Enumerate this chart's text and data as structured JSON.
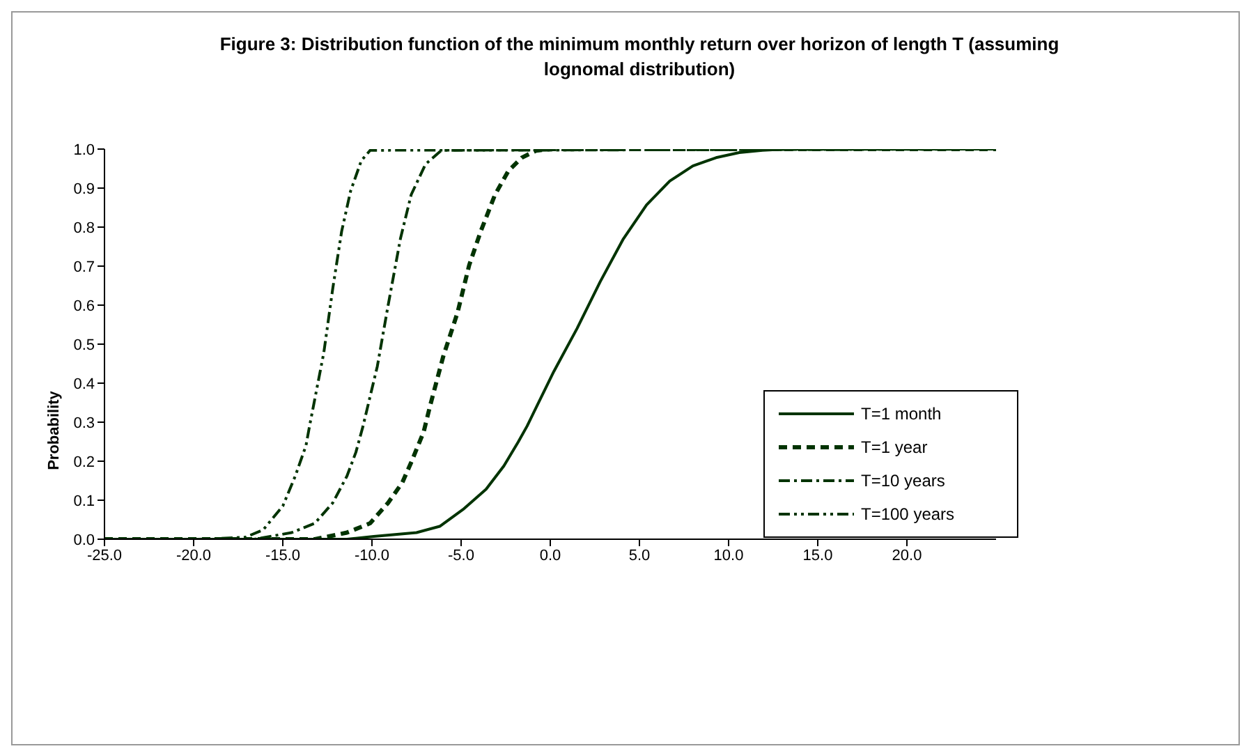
{
  "chart_data": {
    "type": "line",
    "title": "Figure 3:  Distribution function of the minimum monthly return over horizon of length T (assuming lognomal distribution)",
    "ylabel": "Probability",
    "xlim": [
      -25,
      25
    ],
    "xticks": [
      {
        "value": -25,
        "label": "-25.0"
      },
      {
        "value": -20,
        "label": "-20.0"
      },
      {
        "value": -15,
        "label": "-15.0"
      },
      {
        "value": -10,
        "label": "-10.0"
      },
      {
        "value": -5,
        "label": "-5.0"
      },
      {
        "value": 0,
        "label": "0.0"
      },
      {
        "value": 5,
        "label": "5.0"
      },
      {
        "value": 10,
        "label": "10.0"
      },
      {
        "value": 15,
        "label": "15.0"
      },
      {
        "value": 20,
        "label": "20.0"
      }
    ],
    "ylim": [
      0,
      1
    ],
    "yticks": [
      {
        "value": 0,
        "label": "0.0"
      },
      {
        "value": 0.1,
        "label": "0.1"
      },
      {
        "value": 0.2,
        "label": "0.2"
      },
      {
        "value": 0.3,
        "label": "0.3"
      },
      {
        "value": 0.4,
        "label": "0.4"
      },
      {
        "value": 0.5,
        "label": "0.5"
      },
      {
        "value": 0.6,
        "label": "0.6"
      },
      {
        "value": 0.7,
        "label": "0.7"
      },
      {
        "value": 0.8,
        "label": "0.8"
      },
      {
        "value": 0.9,
        "label": "0.9"
      },
      {
        "value": 1,
        "label": "1.0"
      }
    ],
    "grid": false,
    "legend": "right",
    "marker": "none",
    "series": [
      {
        "name": "T=1 month",
        "color": "#003300",
        "line_style": "solid",
        "x": [
          -25,
          -11.4,
          -9.9,
          -7.5,
          -6.2,
          -4.9,
          -3.6,
          -2.6,
          -1.8,
          -1.3,
          0.2,
          1.5,
          2.8,
          4.1,
          5.4,
          6.7,
          8.0,
          9.3,
          10.6,
          11.9,
          13.2,
          25
        ],
        "values": [
          0,
          0,
          0.007,
          0.017,
          0.033,
          0.076,
          0.128,
          0.188,
          0.249,
          0.29,
          0.43,
          0.54,
          0.66,
          0.77,
          0.857,
          0.918,
          0.957,
          0.978,
          0.991,
          0.997,
          1,
          1
        ]
      },
      {
        "name": "T=1 year",
        "color": "#003300",
        "line_style": "dashed",
        "x": [
          -25,
          -13.2,
          -11.4,
          -10.1,
          -9.1,
          -8.3,
          -7.8,
          -7.1,
          -6.75,
          -6.0,
          -5.2,
          -4.55,
          -3.9,
          -3.1,
          -2.35,
          -1.6,
          -0.8,
          0,
          25
        ],
        "values": [
          0,
          0,
          0.017,
          0.041,
          0.093,
          0.145,
          0.197,
          0.275,
          0.34,
          0.469,
          0.581,
          0.702,
          0.789,
          0.883,
          0.944,
          0.978,
          0.996,
          1,
          1
        ]
      },
      {
        "name": "T=10 years",
        "color": "#003300",
        "line_style": "dashdot",
        "x": [
          -25,
          -16.6,
          -14.5,
          -13.2,
          -12.2,
          -11.4,
          -10.9,
          -10.5,
          -9.7,
          -9.1,
          -8.4,
          -7.8,
          -7.0,
          -6.1,
          25
        ],
        "values": [
          0,
          0,
          0.017,
          0.041,
          0.093,
          0.162,
          0.223,
          0.29,
          0.443,
          0.598,
          0.771,
          0.883,
          0.961,
          0.997,
          1
        ]
      },
      {
        "name": "T=100 years",
        "color": "#003300",
        "line_style": "dashdotdot",
        "x": [
          -25,
          -19.7,
          -17.1,
          -16.1,
          -15.0,
          -14.3,
          -13.7,
          -13.5,
          -12.7,
          -12.2,
          -11.7,
          -11.2,
          -10.6,
          -10.1,
          25
        ],
        "values": [
          0,
          0,
          0.005,
          0.024,
          0.085,
          0.162,
          0.24,
          0.29,
          0.478,
          0.642,
          0.789,
          0.892,
          0.97,
          0.997,
          1
        ]
      }
    ]
  }
}
